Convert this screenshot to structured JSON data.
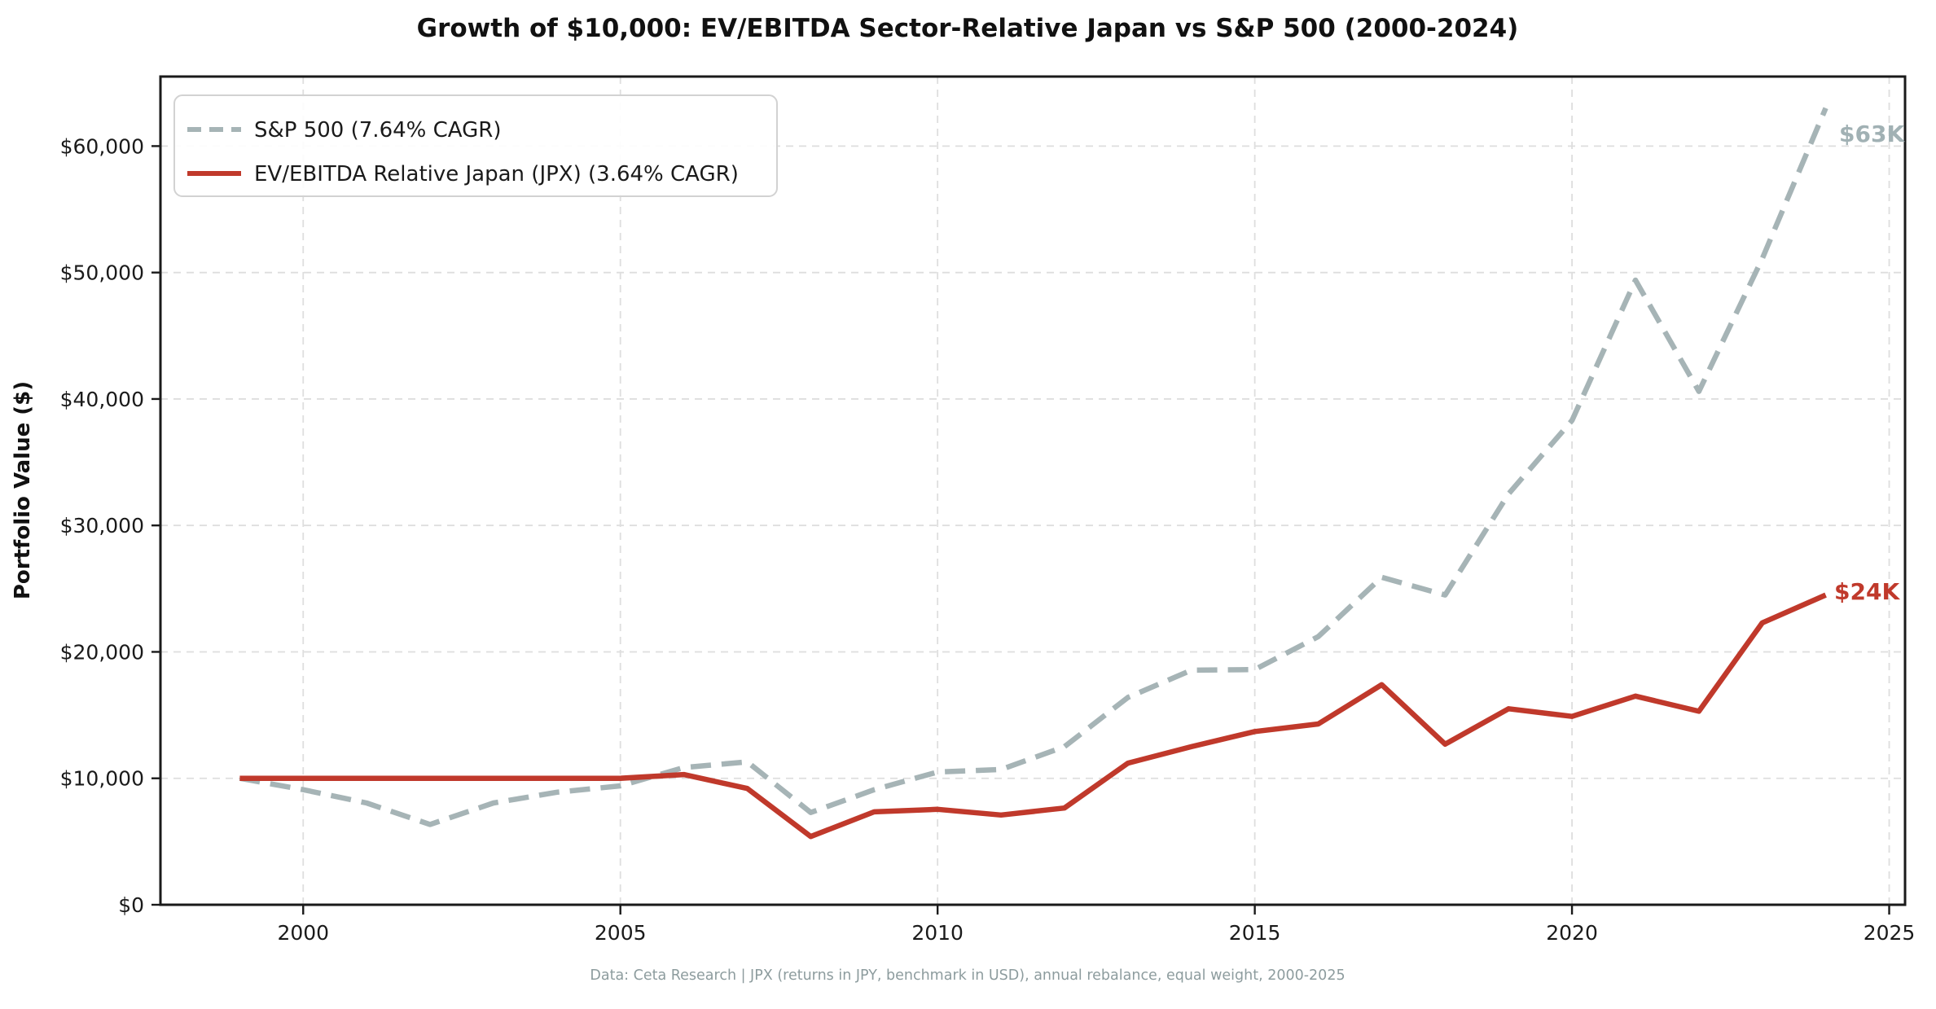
{
  "chart": {
    "title": "Growth of $10,000: EV/EBITDA Sector-Relative Japan vs S&P 500 (2000-2024)",
    "ylabel": "Portfolio Value ($)",
    "caption": "Data: Ceta Research | JPX (returns in JPY, benchmark in USD), annual rebalance, equal weight, 2000-2025",
    "end_labels": {
      "sp500": "$63K",
      "jpx": "$24K"
    }
  },
  "legend": {
    "items": [
      {
        "label": "S&P 500 (7.64% CAGR)",
        "style": "dashed",
        "color": "#a6b4b6"
      },
      {
        "label": "EV/EBITDA Relative Japan (JPX) (3.64% CAGR)",
        "style": "solid",
        "color": "#c0392b"
      }
    ]
  },
  "chart_data": {
    "type": "line",
    "title": "Growth of $10,000: EV/EBITDA Sector-Relative Japan vs S&P 500 (2000-2024)",
    "xlabel": "",
    "ylabel": "Portfolio Value ($)",
    "x": [
      1999,
      2000,
      2001,
      2002,
      2003,
      2004,
      2005,
      2006,
      2007,
      2008,
      2009,
      2010,
      2011,
      2012,
      2013,
      2014,
      2015,
      2016,
      2017,
      2018,
      2019,
      2020,
      2021,
      2022,
      2023,
      2024
    ],
    "series": [
      {
        "name": "S&P 500 (7.64% CAGR)",
        "color": "#a6b4b6",
        "style": "dashed",
        "values": [
          10000,
          9100,
          8050,
          6350,
          8050,
          8900,
          9400,
          10850,
          11300,
          7300,
          9100,
          10500,
          10700,
          12500,
          16400,
          18550,
          18600,
          21200,
          25900,
          24500,
          32500,
          38300,
          49400,
          40600,
          51100,
          63000
        ]
      },
      {
        "name": "EV/EBITDA Relative Japan (JPX) (3.64% CAGR)",
        "color": "#c0392b",
        "style": "solid",
        "values": [
          10000,
          10000,
          10000,
          10000,
          10000,
          10000,
          10000,
          10300,
          9200,
          5400,
          7350,
          7550,
          7100,
          7650,
          11200,
          12500,
          13700,
          14300,
          17400,
          12700,
          15500,
          14900,
          16500,
          15300,
          22300,
          24500
        ]
      }
    ],
    "xlim": [
      1997.75,
      2025.25
    ],
    "ylim": [
      0,
      65500
    ],
    "x_ticks": [
      2000,
      2005,
      2010,
      2015,
      2020,
      2025
    ],
    "x_tick_labels": [
      "2000",
      "2005",
      "2010",
      "2015",
      "2020",
      "2025"
    ],
    "y_ticks": [
      0,
      10000,
      20000,
      30000,
      40000,
      50000,
      60000
    ],
    "y_tick_labels": [
      "$0",
      "$10,000",
      "$20,000",
      "$30,000",
      "$40,000",
      "$50,000",
      "$60,000"
    ],
    "grid": true,
    "legend_position": "upper left",
    "annotations": [
      {
        "text": "$63K",
        "series": "S&P 500 (7.64% CAGR)",
        "x": 2024,
        "y": 63000
      },
      {
        "text": "$24K",
        "series": "EV/EBITDA Relative Japan (JPX) (3.64% CAGR)",
        "x": 2024,
        "y": 24500
      }
    ]
  },
  "colors": {
    "sp500_line": "#a6b4b6",
    "jpx_line": "#c0392b",
    "gridline": "#dedede",
    "spine": "#1a1a1a",
    "caption_text": "#8d9c9e",
    "background": "#ffffff"
  }
}
